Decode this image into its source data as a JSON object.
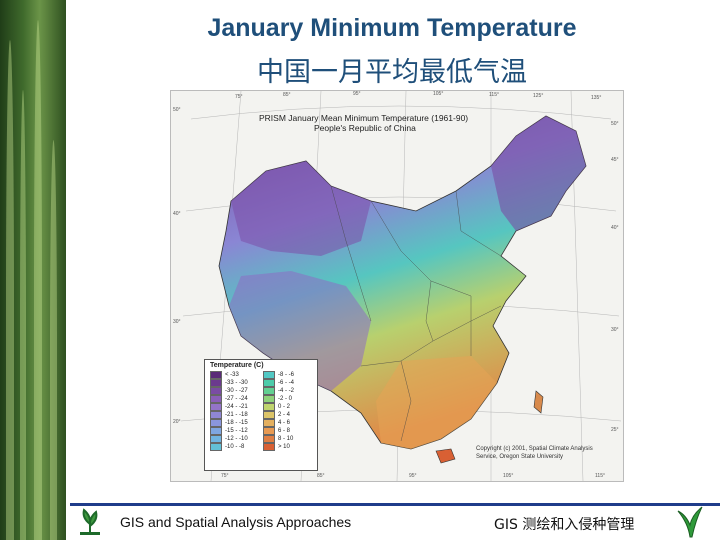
{
  "slide": {
    "title_en": "January Minimum Temperature",
    "title_zh": "中国一月平均最低气温",
    "footer_left": "GIS and Spatial Analysis Approaches",
    "footer_right": "GIS 测绘和入侵种管理"
  },
  "map": {
    "title_line1": "PRISM January Mean Minimum Temperature (1961-90)",
    "title_line2": "People's Republic of China",
    "copyright_line1": "Copyright (c) 2001, Spatial Climate Analysis",
    "copyright_line2": "Service, Oregon State University",
    "top_labels": [
      "75°",
      "85°",
      "95°",
      "105°",
      "115°",
      "125°",
      "135°"
    ],
    "bottom_labels": [
      "75°",
      "85°",
      "95°",
      "105°",
      "115°",
      "125°"
    ],
    "left_labels": [
      "50°",
      "40°",
      "30°",
      "20°"
    ],
    "right_labels": [
      "50°",
      "45°",
      "40°",
      "30°",
      "25°"
    ],
    "legend": {
      "title": "Temperature (C)",
      "items": [
        {
          "label": "< -33",
          "color": "#5a2a78"
        },
        {
          "label": "-33 - -30",
          "color": "#6b3a8e"
        },
        {
          "label": "-30 - -27",
          "color": "#7a4ca3"
        },
        {
          "label": "-27 - -24",
          "color": "#8a5fb8"
        },
        {
          "label": "-24 - -21",
          "color": "#9474c8"
        },
        {
          "label": "-21 - -18",
          "color": "#8f86d4"
        },
        {
          "label": "-18 - -15",
          "color": "#8a96dc"
        },
        {
          "label": "-15 - -12",
          "color": "#7fa6e0"
        },
        {
          "label": "-12 - -10",
          "color": "#70b4e0"
        },
        {
          "label": "-10 - -8",
          "color": "#63c0d6"
        },
        {
          "label": "-8 - -6",
          "color": "#52c8c4"
        },
        {
          "label": "-6 - -4",
          "color": "#4dccaa"
        },
        {
          "label": "-4 - -2",
          "color": "#62d092"
        },
        {
          "label": "-2 - 0",
          "color": "#8fd27a"
        },
        {
          "label": "0 - 2",
          "color": "#c0d46e"
        },
        {
          "label": "2 - 4",
          "color": "#dcc468"
        },
        {
          "label": "4 - 6",
          "color": "#e4b060"
        },
        {
          "label": "6 - 8",
          "color": "#e89a52"
        },
        {
          "label": "8 - 10",
          "color": "#e07e42"
        },
        {
          "label": "> 10",
          "color": "#d86034"
        }
      ]
    }
  }
}
